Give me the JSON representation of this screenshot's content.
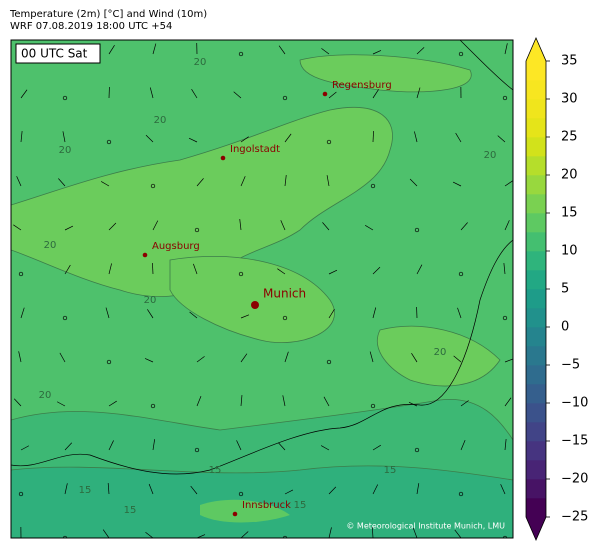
{
  "header": {
    "title": "Temperature (2m) [°C] and Wind (10m)",
    "subtitle": "WRF 07.08.2019 18:00 UTC +54"
  },
  "time_label": "00 UTC Sat",
  "cities": [
    {
      "name": "Regensburg",
      "capital": false
    },
    {
      "name": "Ingolstadt",
      "capital": false
    },
    {
      "name": "Augsburg",
      "capital": false
    },
    {
      "name": "Munich",
      "capital": true
    },
    {
      "name": "Innsbruck",
      "capital": false
    }
  ],
  "contour_labels": [
    20,
    20,
    20,
    20,
    20,
    20,
    20,
    20,
    15,
    15,
    15,
    15,
    15
  ],
  "credit": "© Meteorological Institute Munich, LMU",
  "colorbar": {
    "lim": [
      -25,
      35
    ],
    "ticks": [
      35,
      30,
      25,
      20,
      15,
      10,
      5,
      0,
      {
        "value": -5,
        "label": "−5"
      },
      {
        "value": -10,
        "label": "−10"
      },
      {
        "value": -15,
        "label": "−15"
      },
      {
        "value": -20,
        "label": "−20"
      },
      {
        "value": -25,
        "label": "−25"
      }
    ],
    "colors": [
      "#440154",
      "#471365",
      "#482475",
      "#463480",
      "#414487",
      "#3b528b",
      "#355f8d",
      "#2f6c8e",
      "#2a788e",
      "#25848e",
      "#21918c",
      "#1e9c89",
      "#22a884",
      "#2fb47c",
      "#44bf70",
      "#5ec962",
      "#7ad151",
      "#98d83e",
      "#b5de2b",
      "#d2e21b",
      "#e5e419",
      "#f0e51c",
      "#f7e620",
      "#fde725"
    ],
    "under_color": "#440154",
    "over_color": "#fde725"
  }
}
